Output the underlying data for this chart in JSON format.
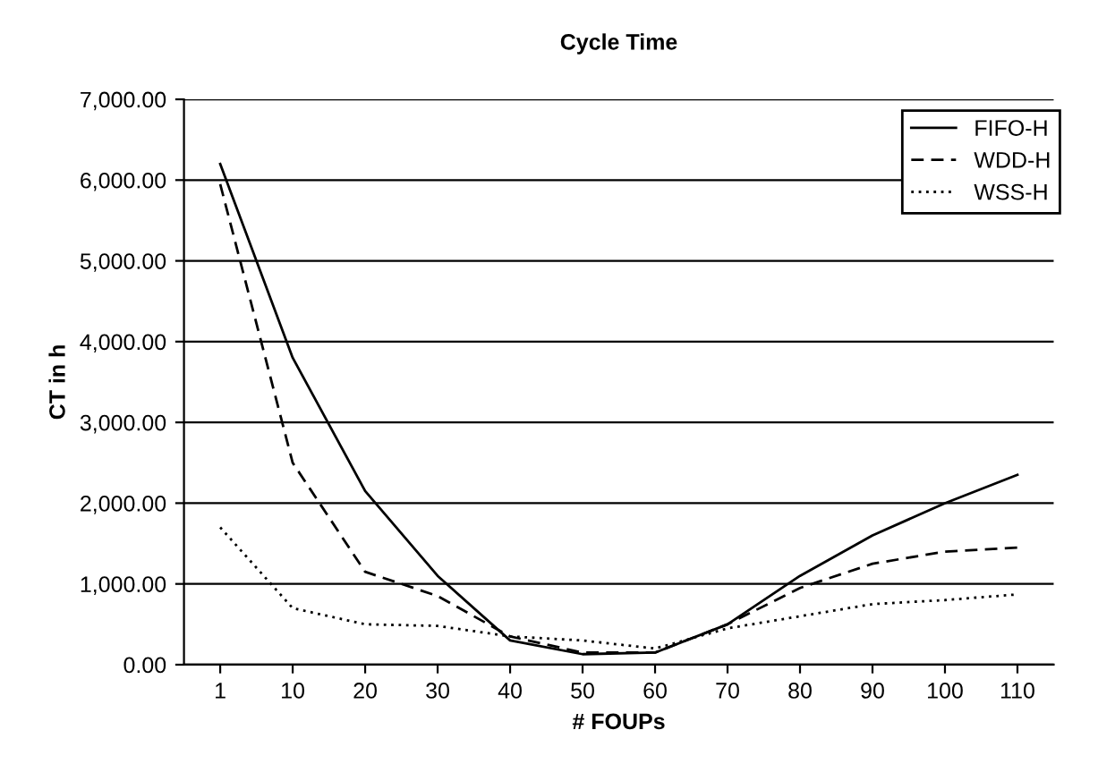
{
  "chart_data": {
    "type": "line",
    "title": "Cycle Time",
    "xlabel": "# FOUPs",
    "ylabel": "CT in h",
    "categories": [
      "1",
      "10",
      "20",
      "30",
      "40",
      "50",
      "60",
      "70",
      "80",
      "90",
      "100",
      "110"
    ],
    "series": [
      {
        "name": "FIFO-H",
        "color": "#000000",
        "line_style": "solid",
        "values": [
          6200,
          3800,
          2150,
          1100,
          300,
          130,
          150,
          500,
          1100,
          1600,
          2000,
          2350
        ]
      },
      {
        "name": "WDD-H",
        "color": "#000000",
        "line_style": "dashed",
        "values": [
          5950,
          2500,
          1150,
          850,
          350,
          150,
          150,
          500,
          950,
          1250,
          1400,
          1450
        ]
      },
      {
        "name": "WSS-H",
        "color": "#000000",
        "line_style": "dotted",
        "values": [
          1700,
          700,
          500,
          480,
          350,
          300,
          200,
          450,
          600,
          750,
          800,
          870
        ]
      }
    ],
    "ylim": [
      0,
      7000
    ],
    "yticks": [
      {
        "value": 0,
        "label": "0.00"
      },
      {
        "value": 1000,
        "label": "1,000.00"
      },
      {
        "value": 2000,
        "label": "2,000.00"
      },
      {
        "value": 3000,
        "label": "3,000.00"
      },
      {
        "value": 4000,
        "label": "4,000.00"
      },
      {
        "value": 5000,
        "label": "5,000.00"
      },
      {
        "value": 6000,
        "label": "6,000.00"
      },
      {
        "value": 7000,
        "label": "7,000.00"
      }
    ],
    "grid": "y",
    "legend": "top right",
    "marker": "none"
  }
}
